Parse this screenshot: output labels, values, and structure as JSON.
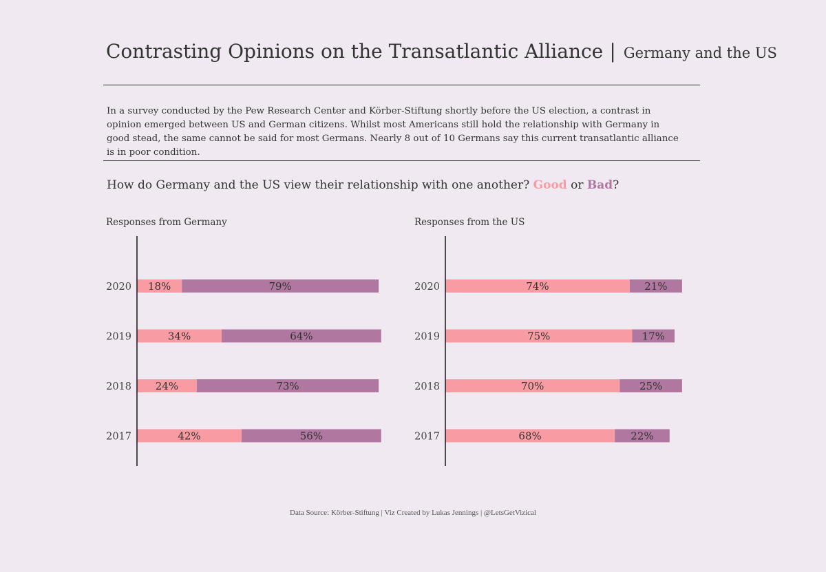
{
  "title": {
    "main": "Contrasting Opinions on the Transatlantic Alliance",
    "separator": "|",
    "sub": "Germany and the US"
  },
  "intro": "In a survey conducted by the Pew Research Center and Körber-Stiftung shortly before the US election, a contrast in opinion emerged between US and German citizens. Whilst most Americans still hold the relationship with Germany in good stead, the same cannot be said for most Germans. Nearly 8 out of 10 Germans say this current transatlantic alliance is in poor condition.",
  "question": {
    "prefix": "How do Germany and the US view their relationship with one another? ",
    "good": "Good",
    "or": " or ",
    "bad": "Bad",
    "suffix": "?"
  },
  "colors": {
    "good": "#f99ba2",
    "bad": "#b078a0",
    "background": "#f1e9f1",
    "text": "#333333"
  },
  "chart_data": [
    {
      "type": "bar",
      "orientation": "horizontal",
      "stacked": true,
      "title": "Responses from Germany",
      "categories": [
        "2020",
        "2019",
        "2018",
        "2017"
      ],
      "series": [
        {
          "name": "Good",
          "values": [
            18,
            34,
            24,
            42
          ]
        },
        {
          "name": "Bad",
          "values": [
            79,
            64,
            73,
            56
          ]
        }
      ],
      "xlim": [
        0,
        100
      ],
      "data_labels": true,
      "unit": "%"
    },
    {
      "type": "bar",
      "orientation": "horizontal",
      "stacked": true,
      "title": "Responses from the US",
      "categories": [
        "2020",
        "2019",
        "2018",
        "2017"
      ],
      "series": [
        {
          "name": "Good",
          "values": [
            74,
            75,
            70,
            68
          ]
        },
        {
          "name": "Bad",
          "values": [
            21,
            17,
            25,
            22
          ]
        }
      ],
      "xlim": [
        0,
        100
      ],
      "data_labels": true,
      "unit": "%"
    }
  ],
  "footer": "Data Source: Körber-Stiftung | Viz Created by Lukas Jennings | @LetsGetVizical"
}
